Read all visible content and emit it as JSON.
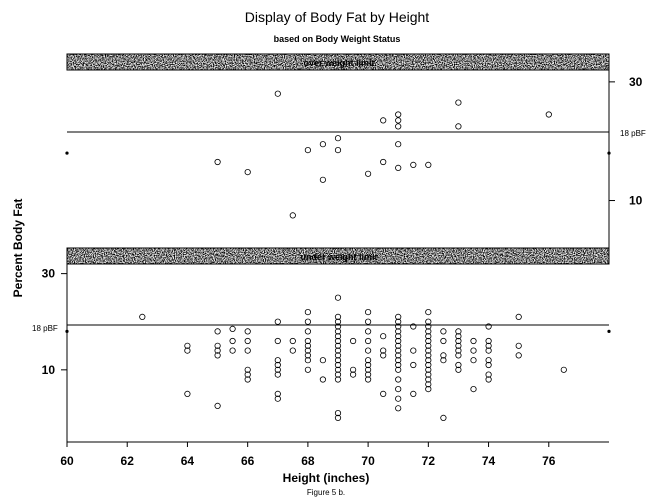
{
  "chart_data": {
    "type": "scatter",
    "title": "Display of Body Fat by Height",
    "subtitle": "based on Body Weight Status",
    "xlabel": "Height (inches)",
    "ylabel": "Percent Body Fat",
    "caption": "Figure 5 b.",
    "xlim": [
      60,
      78
    ],
    "x_ticks": [
      60,
      62,
      64,
      66,
      68,
      70,
      72,
      74,
      76
    ],
    "reference_label_top": "18 pBF",
    "reference_label_bottom": "18 pBF",
    "reference_value": 18,
    "panels": [
      {
        "label": "over weight limit",
        "ylim": [
          2,
          32
        ],
        "y_ticks": [
          10,
          30
        ],
        "y_axis_side": "right",
        "reference_line": 18,
        "points": [
          {
            "x": 65,
            "y": 16.5
          },
          {
            "x": 66,
            "y": 14.8
          },
          {
            "x": 67,
            "y": 28
          },
          {
            "x": 67.5,
            "y": 7.5
          },
          {
            "x": 68,
            "y": 18.5
          },
          {
            "x": 68.5,
            "y": 13.5
          },
          {
            "x": 68.5,
            "y": 19.5
          },
          {
            "x": 69,
            "y": 20.5
          },
          {
            "x": 69,
            "y": 18.5
          },
          {
            "x": 70,
            "y": 14.5
          },
          {
            "x": 70.5,
            "y": 16.5
          },
          {
            "x": 70.5,
            "y": 23.5
          },
          {
            "x": 71,
            "y": 24.5
          },
          {
            "x": 71,
            "y": 23.5
          },
          {
            "x": 71,
            "y": 22.5
          },
          {
            "x": 71,
            "y": 19.5
          },
          {
            "x": 71,
            "y": 15.5
          },
          {
            "x": 71.5,
            "y": 16
          },
          {
            "x": 72,
            "y": 16
          },
          {
            "x": 73,
            "y": 26.5
          },
          {
            "x": 73,
            "y": 22.5
          },
          {
            "x": 76,
            "y": 24.5
          }
        ]
      },
      {
        "label": "under weight limit",
        "ylim": [
          -5,
          32
        ],
        "y_ticks": [
          10,
          30
        ],
        "y_axis_side": "left",
        "reference_line": 18,
        "points": [
          {
            "x": 62.5,
            "y": 21
          },
          {
            "x": 64,
            "y": 15
          },
          {
            "x": 64,
            "y": 14
          },
          {
            "x": 64,
            "y": 5
          },
          {
            "x": 65,
            "y": 15
          },
          {
            "x": 65,
            "y": 14
          },
          {
            "x": 65,
            "y": 13
          },
          {
            "x": 65,
            "y": 2.5
          },
          {
            "x": 65,
            "y": 18
          },
          {
            "x": 65.5,
            "y": 16
          },
          {
            "x": 65.5,
            "y": 14
          },
          {
            "x": 65.5,
            "y": 18.5
          },
          {
            "x": 66,
            "y": 18
          },
          {
            "x": 66,
            "y": 16
          },
          {
            "x": 66,
            "y": 14
          },
          {
            "x": 66,
            "y": 10
          },
          {
            "x": 66,
            "y": 9
          },
          {
            "x": 66,
            "y": 8
          },
          {
            "x": 67,
            "y": 20
          },
          {
            "x": 67,
            "y": 16
          },
          {
            "x": 67,
            "y": 12
          },
          {
            "x": 67,
            "y": 11
          },
          {
            "x": 67,
            "y": 10
          },
          {
            "x": 67,
            "y": 9
          },
          {
            "x": 67,
            "y": 5
          },
          {
            "x": 67,
            "y": 4
          },
          {
            "x": 67.5,
            "y": 16
          },
          {
            "x": 67.5,
            "y": 14
          },
          {
            "x": 68,
            "y": 22
          },
          {
            "x": 68,
            "y": 20
          },
          {
            "x": 68,
            "y": 18
          },
          {
            "x": 68,
            "y": 16
          },
          {
            "x": 68,
            "y": 15
          },
          {
            "x": 68,
            "y": 14
          },
          {
            "x": 68,
            "y": 13
          },
          {
            "x": 68,
            "y": 12
          },
          {
            "x": 68,
            "y": 10
          },
          {
            "x": 68.5,
            "y": 8
          },
          {
            "x": 68.5,
            "y": 12
          },
          {
            "x": 69,
            "y": 25
          },
          {
            "x": 69,
            "y": 21
          },
          {
            "x": 69,
            "y": 20
          },
          {
            "x": 69,
            "y": 19
          },
          {
            "x": 69,
            "y": 18
          },
          {
            "x": 69,
            "y": 17
          },
          {
            "x": 69,
            "y": 16
          },
          {
            "x": 69,
            "y": 15
          },
          {
            "x": 69,
            "y": 14
          },
          {
            "x": 69,
            "y": 13
          },
          {
            "x": 69,
            "y": 12
          },
          {
            "x": 69,
            "y": 11
          },
          {
            "x": 69,
            "y": 10
          },
          {
            "x": 69,
            "y": 9
          },
          {
            "x": 69,
            "y": 8
          },
          {
            "x": 69,
            "y": 1
          },
          {
            "x": 69,
            "y": 0
          },
          {
            "x": 69.5,
            "y": 16
          },
          {
            "x": 69.5,
            "y": 10
          },
          {
            "x": 69.5,
            "y": 9
          },
          {
            "x": 70,
            "y": 22
          },
          {
            "x": 70,
            "y": 20
          },
          {
            "x": 70,
            "y": 18
          },
          {
            "x": 70,
            "y": 16
          },
          {
            "x": 70,
            "y": 14
          },
          {
            "x": 70,
            "y": 12
          },
          {
            "x": 70,
            "y": 11
          },
          {
            "x": 70,
            "y": 10
          },
          {
            "x": 70,
            "y": 9
          },
          {
            "x": 70,
            "y": 8
          },
          {
            "x": 70.5,
            "y": 17
          },
          {
            "x": 70.5,
            "y": 14
          },
          {
            "x": 70.5,
            "y": 13
          },
          {
            "x": 70.5,
            "y": 5
          },
          {
            "x": 71,
            "y": 21
          },
          {
            "x": 71,
            "y": 20
          },
          {
            "x": 71,
            "y": 19
          },
          {
            "x": 71,
            "y": 18
          },
          {
            "x": 71,
            "y": 17
          },
          {
            "x": 71,
            "y": 16
          },
          {
            "x": 71,
            "y": 15
          },
          {
            "x": 71,
            "y": 14
          },
          {
            "x": 71,
            "y": 13
          },
          {
            "x": 71,
            "y": 12
          },
          {
            "x": 71,
            "y": 11
          },
          {
            "x": 71,
            "y": 10
          },
          {
            "x": 71,
            "y": 8
          },
          {
            "x": 71,
            "y": 6
          },
          {
            "x": 71,
            "y": 4
          },
          {
            "x": 71,
            "y": 2
          },
          {
            "x": 71.5,
            "y": 19
          },
          {
            "x": 71.5,
            "y": 14
          },
          {
            "x": 71.5,
            "y": 11
          },
          {
            "x": 71.5,
            "y": 5
          },
          {
            "x": 72,
            "y": 22
          },
          {
            "x": 72,
            "y": 20
          },
          {
            "x": 72,
            "y": 19
          },
          {
            "x": 72,
            "y": 18
          },
          {
            "x": 72,
            "y": 17
          },
          {
            "x": 72,
            "y": 16
          },
          {
            "x": 72,
            "y": 15
          },
          {
            "x": 72,
            "y": 14
          },
          {
            "x": 72,
            "y": 13
          },
          {
            "x": 72,
            "y": 12
          },
          {
            "x": 72,
            "y": 11
          },
          {
            "x": 72,
            "y": 10
          },
          {
            "x": 72,
            "y": 9
          },
          {
            "x": 72,
            "y": 8
          },
          {
            "x": 72,
            "y": 7
          },
          {
            "x": 72,
            "y": 6
          },
          {
            "x": 72.5,
            "y": 18
          },
          {
            "x": 72.5,
            "y": 16
          },
          {
            "x": 72.5,
            "y": 13
          },
          {
            "x": 72.5,
            "y": 12
          },
          {
            "x": 72.5,
            "y": 0
          },
          {
            "x": 73,
            "y": 18
          },
          {
            "x": 73,
            "y": 17
          },
          {
            "x": 73,
            "y": 16
          },
          {
            "x": 73,
            "y": 15
          },
          {
            "x": 73,
            "y": 14
          },
          {
            "x": 73,
            "y": 13
          },
          {
            "x": 73,
            "y": 11
          },
          {
            "x": 73,
            "y": 10
          },
          {
            "x": 73.5,
            "y": 16
          },
          {
            "x": 73.5,
            "y": 14
          },
          {
            "x": 73.5,
            "y": 12
          },
          {
            "x": 73.5,
            "y": 6
          },
          {
            "x": 74,
            "y": 19
          },
          {
            "x": 74,
            "y": 16
          },
          {
            "x": 74,
            "y": 15
          },
          {
            "x": 74,
            "y": 14
          },
          {
            "x": 74,
            "y": 12
          },
          {
            "x": 74,
            "y": 11
          },
          {
            "x": 74,
            "y": 9
          },
          {
            "x": 74,
            "y": 8
          },
          {
            "x": 75,
            "y": 21
          },
          {
            "x": 75,
            "y": 15
          },
          {
            "x": 75,
            "y": 13
          },
          {
            "x": 76.5,
            "y": 10
          }
        ]
      }
    ],
    "grid": false,
    "legend": "none"
  },
  "colors": {
    "ink": "#000000",
    "background": "#ffffff",
    "strip_base": "#ededed"
  }
}
